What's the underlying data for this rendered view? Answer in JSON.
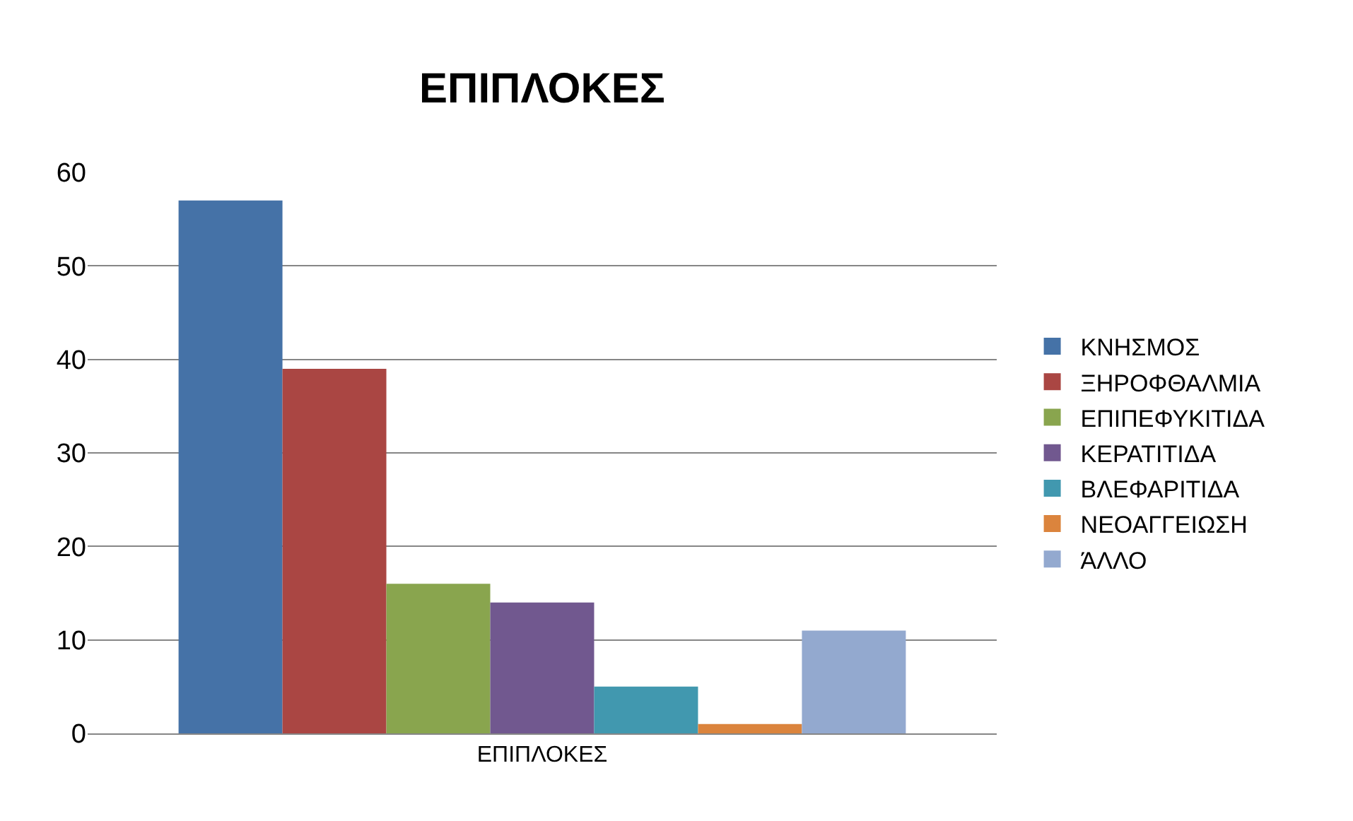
{
  "chart_data": {
    "type": "bar",
    "title": "ΕΠΙΠΛΟΚΕΣ",
    "categories": [
      "ΕΠΙΠΛΟΚΕΣ"
    ],
    "series": [
      {
        "name": "ΚΝΗΣΜΟΣ",
        "color": "#4572a7",
        "values": [
          57
        ]
      },
      {
        "name": "ΞΗΡΟΦΘΑΛΜΙΑ",
        "color": "#aa4643",
        "values": [
          39
        ]
      },
      {
        "name": "ΕΠΙΠΕΦΥΚΙΤΙΔΑ",
        "color": "#89a54e",
        "values": [
          16
        ]
      },
      {
        "name": "ΚΕΡΑΤΙΤΙΔΑ",
        "color": "#71588f",
        "values": [
          14
        ]
      },
      {
        "name": "ΒΛΕΦΑΡΙΤΙΔΑ",
        "color": "#4198af",
        "values": [
          5
        ]
      },
      {
        "name": "ΝΕΟΑΓΓΕΙΩΣΗ",
        "color": "#db843d",
        "values": [
          1
        ]
      },
      {
        "name": "ΆΛΛΟ",
        "color": "#93a9cf",
        "values": [
          11
        ]
      }
    ],
    "ylim": [
      0,
      60
    ],
    "yticks": [
      0,
      10,
      20,
      30,
      40,
      50,
      60
    ],
    "grid": "y",
    "legend": "right"
  }
}
